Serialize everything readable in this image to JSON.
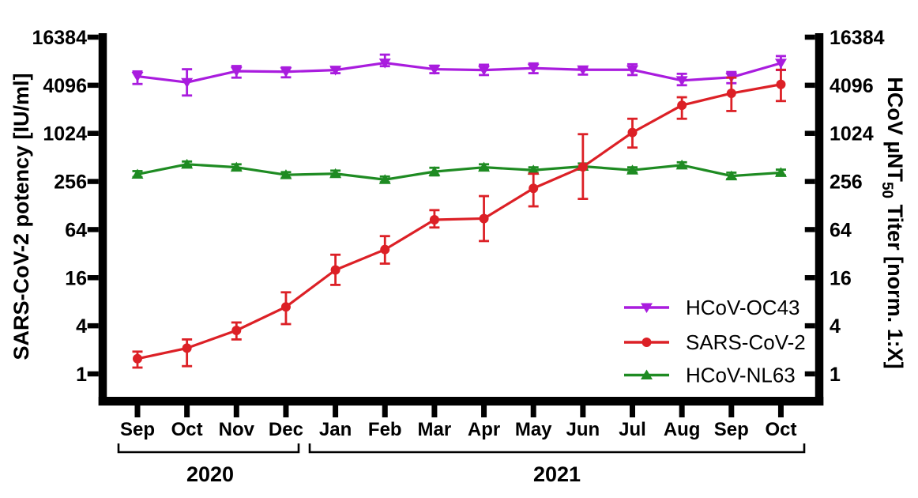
{
  "chart_data": {
    "type": "line",
    "title": "",
    "x_categories": [
      "Sep",
      "Oct",
      "Nov",
      "Dec",
      "Jan",
      "Feb",
      "Mar",
      "Apr",
      "May",
      "Jun",
      "Jul",
      "Aug",
      "Sep",
      "Oct"
    ],
    "year_groups": [
      {
        "label": "2020",
        "start_index": 0,
        "end_index": 3
      },
      {
        "label": "2021",
        "start_index": 4,
        "end_index": 13
      }
    ],
    "y_axis": {
      "scale": "log4",
      "ticks": [
        1,
        4,
        16,
        64,
        256,
        1024,
        4096,
        16384
      ],
      "range": [
        1,
        16384
      ],
      "left_label": "SARS-CoV-2 potency [IU/ml]",
      "right_label": "HCoV µNT50 Titer [norm. 1:X]",
      "right_label_parts": {
        "pre": "HCoV µNT",
        "sub": "50",
        "post": " Titer [norm. 1:X]"
      }
    },
    "grid": "off",
    "legend": {
      "position": "inside-lower-right",
      "items": [
        "HCoV-OC43",
        "SARS-CoV-2",
        "HCoV-NL63"
      ]
    },
    "series": [
      {
        "name": "HCoV-OC43",
        "color": "#A91CDE",
        "marker": "triangle-down",
        "values": [
          5300,
          4450,
          6150,
          6050,
          6350,
          7800,
          6500,
          6350,
          6700,
          6400,
          6400,
          4700,
          5150,
          7750
        ],
        "err_lo": [
          4250,
          3050,
          5100,
          5150,
          5800,
          7100,
          5800,
          5500,
          5800,
          5570,
          5500,
          4100,
          4350,
          6350
        ],
        "err_hi": [
          6100,
          6500,
          7130,
          6850,
          6900,
          9900,
          7200,
          7400,
          7680,
          6775,
          7500,
          5700,
          6000,
          9500
        ]
      },
      {
        "name": "SARS-CoV-2",
        "color": "#DC2026",
        "marker": "circle",
        "values": [
          1.55,
          2.1,
          3.5,
          6.9,
          20,
          36,
          85,
          88,
          210,
          390,
          1050,
          2300,
          3250,
          4200
        ],
        "err_lo": [
          1.2,
          1.25,
          2.7,
          4.2,
          13,
          24,
          68,
          46,
          125,
          155,
          680,
          1560,
          1950,
          2600
        ],
        "err_hi": [
          1.9,
          2.7,
          4.4,
          10.5,
          31,
          53,
          112,
          168,
          320,
          1000,
          1560,
          2900,
          5100,
          6400
        ]
      },
      {
        "name": "HCoV-NL63",
        "color": "#1E8B22",
        "marker": "triangle-up",
        "values": [
          315,
          420,
          385,
          310,
          320,
          270,
          340,
          385,
          355,
          395,
          355,
          410,
          300,
          330
        ],
        "err_lo": [
          290,
          390,
          355,
          285,
          295,
          250,
          305,
          355,
          330,
          365,
          330,
          380,
          275,
          305
        ],
        "err_hi": [
          345,
          455,
          420,
          335,
          350,
          295,
          380,
          420,
          385,
          430,
          385,
          445,
          330,
          360
        ]
      }
    ],
    "axis_color": "#000000"
  }
}
